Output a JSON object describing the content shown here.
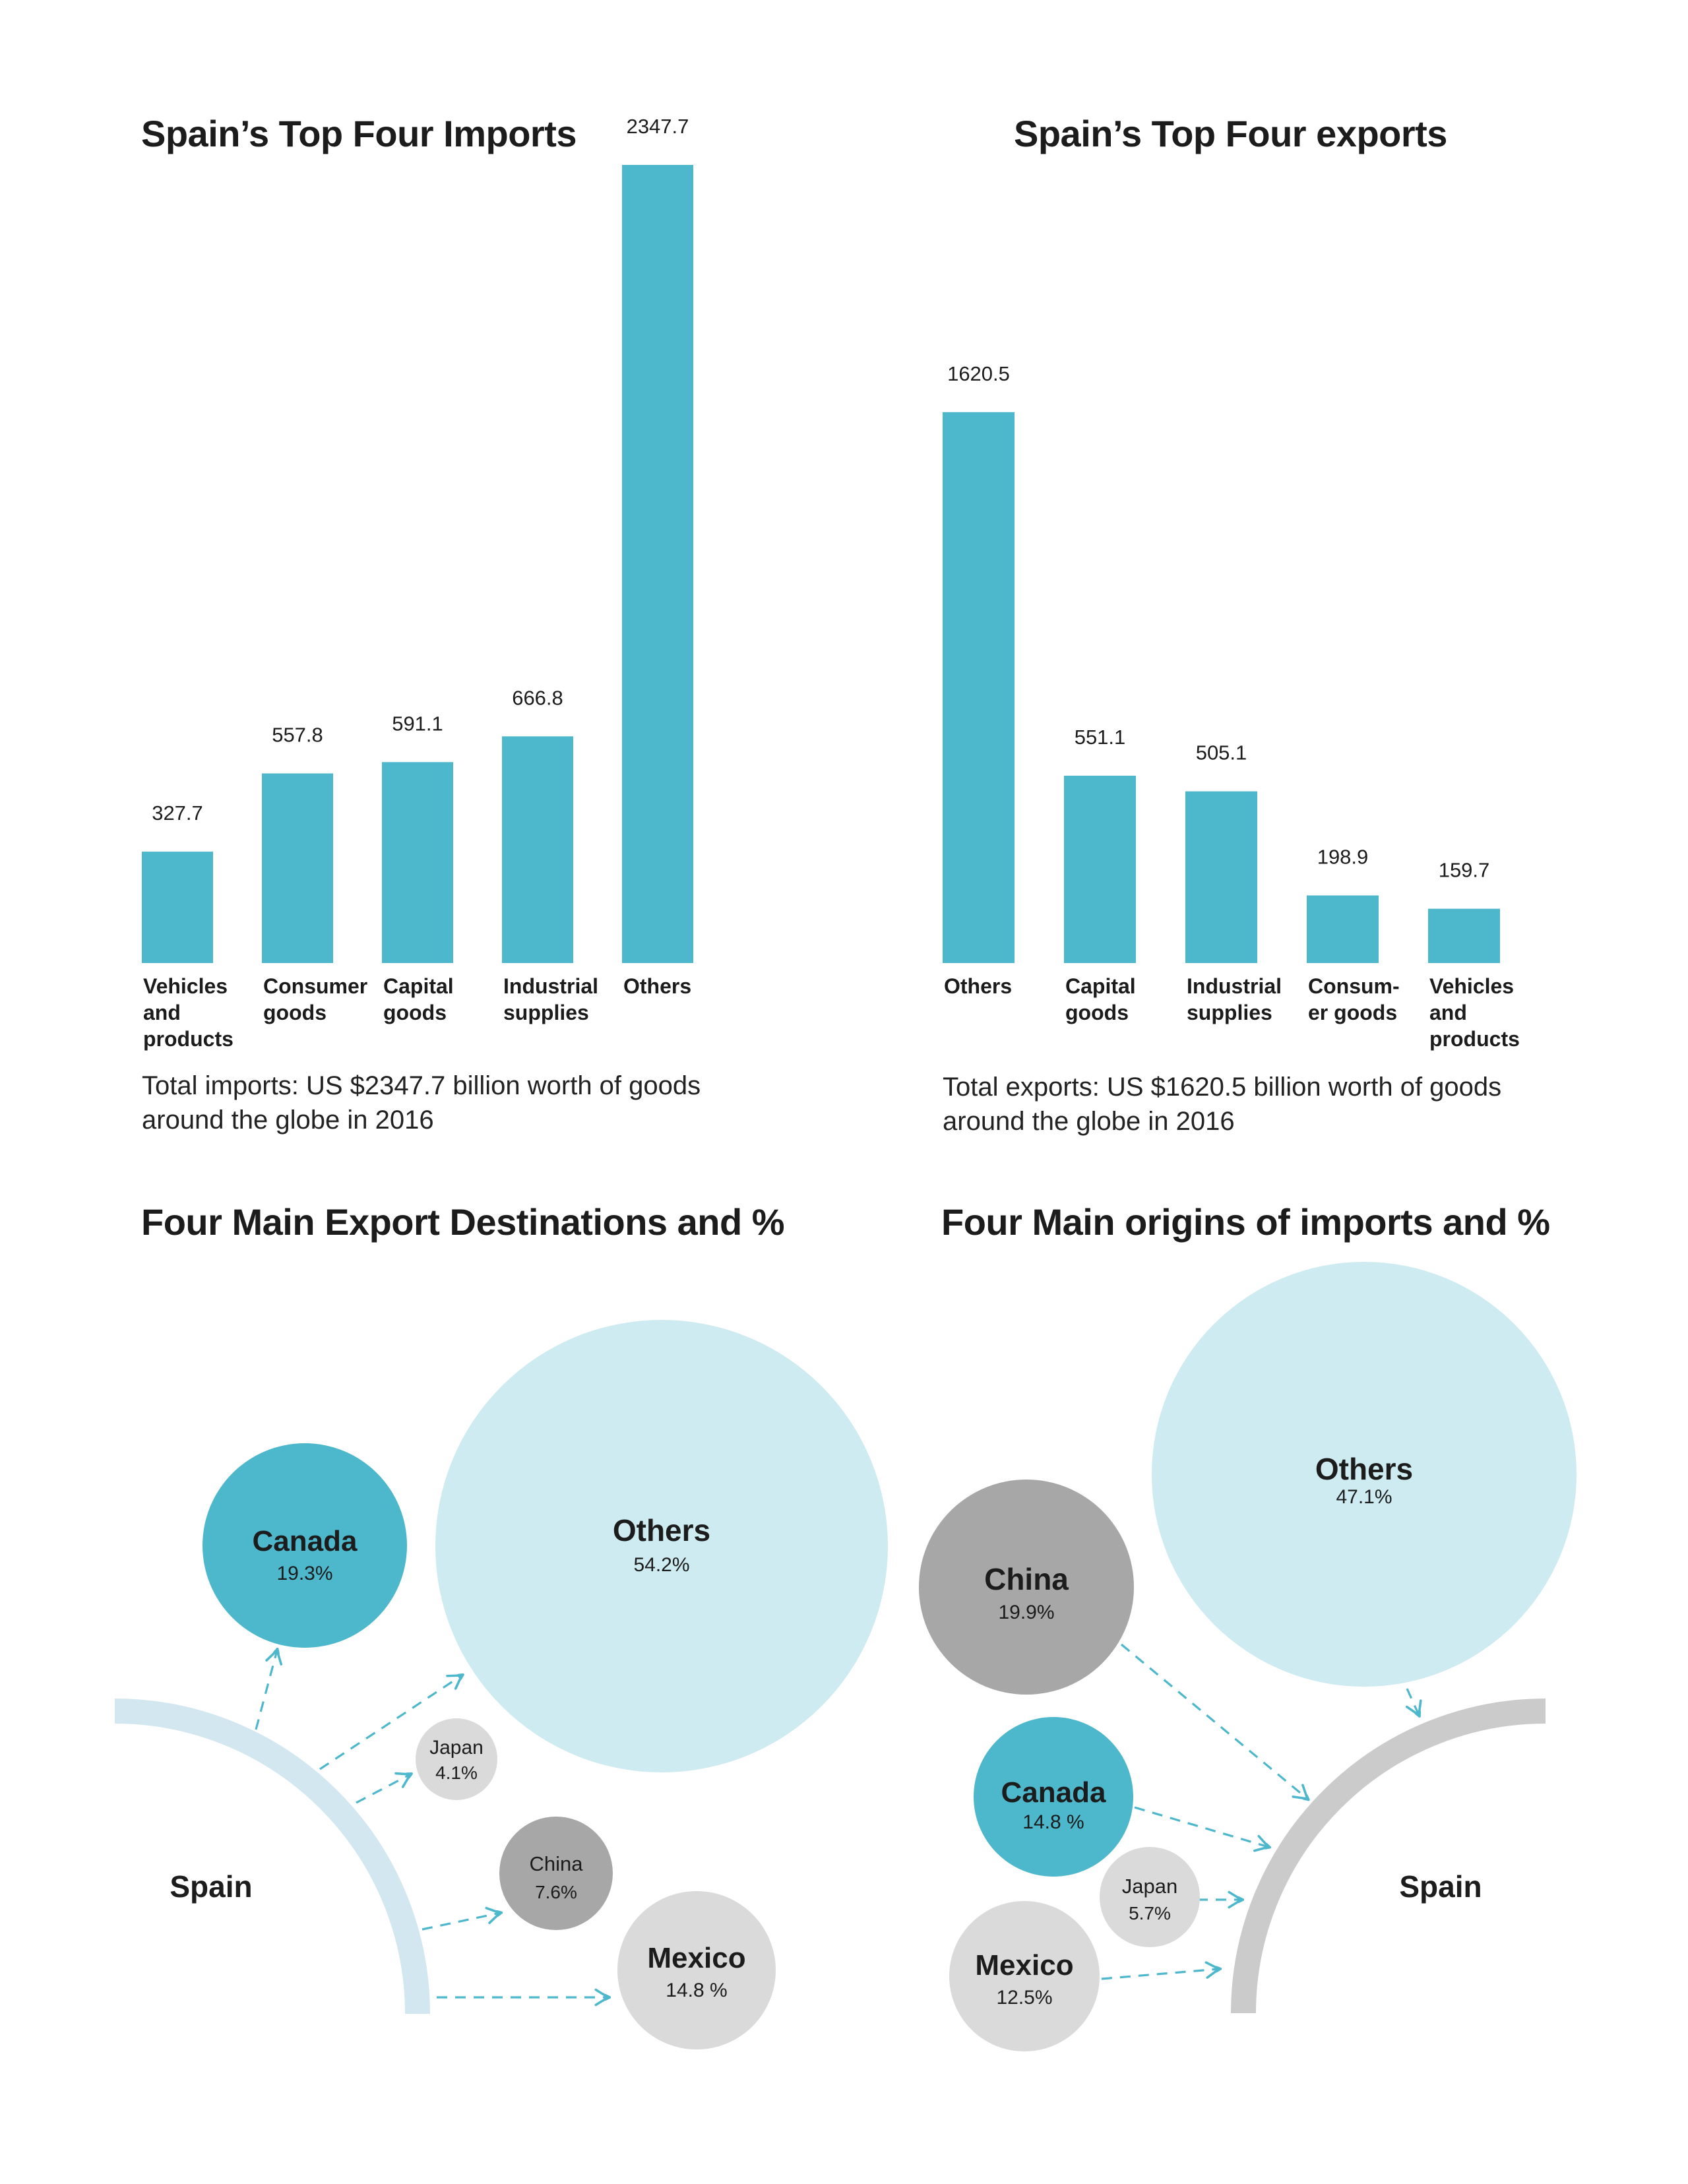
{
  "colors": {
    "teal": "#4db7cc",
    "light_teal": "#cdebf0",
    "dark_gray": "#a7a7a7",
    "light_gray": "#dadada",
    "arc_export": "#d3e7f0",
    "arc_import": "#cbcbcb",
    "arrow": "#4db7cc"
  },
  "imports_chart": {
    "title": "Spain’s Top Four Imports",
    "note_lines": [
      "Total imports: US $2347.7 billion worth of goods",
      "around the globe in 2016"
    ]
  },
  "exports_chart": {
    "title": "Spain’s Top Four exports",
    "note_lines": [
      "Total exports: US $1620.5 billion worth of goods",
      "around the globe in 2016"
    ]
  },
  "destinations": {
    "title": "Four Main Export Destinations and %",
    "origin_label": "Spain"
  },
  "origins": {
    "title": "Four Main origins of imports and %",
    "destination_label": "Spain"
  },
  "chart_data": [
    {
      "type": "bar",
      "title": "Spain’s Top Four Imports",
      "categories": [
        "Vehicles and products",
        "Consumer goods",
        "Capital goods",
        "Industrial supplies",
        "Others"
      ],
      "category_lines": [
        [
          "Vehicles",
          "and",
          "products"
        ],
        [
          "Consumer",
          "goods"
        ],
        [
          "Capital",
          "goods"
        ],
        [
          "Industrial",
          "supplies"
        ],
        [
          "Others"
        ]
      ],
      "values": [
        327.7,
        557.8,
        591.1,
        666.8,
        2347.7
      ],
      "value_labels": [
        "327.7",
        "557.8",
        "591.1",
        "666.8",
        "2347.7"
      ],
      "ylim": [
        0,
        2347.7
      ],
      "grid": false,
      "color": "#4db7cc"
    },
    {
      "type": "bar",
      "title": "Spain’s Top Four exports",
      "categories": [
        "Others",
        "Capital goods",
        "Industrial supplies",
        "Consumer goods",
        "Vehicles and products"
      ],
      "category_lines": [
        [
          "Others"
        ],
        [
          "Capital",
          "goods"
        ],
        [
          "Industrial",
          "supplies"
        ],
        [
          "Consum-",
          "er goods"
        ],
        [
          "Vehicles",
          "and",
          "products"
        ]
      ],
      "values": [
        1620.5,
        551.1,
        505.1,
        198.9,
        159.7
      ],
      "value_labels": [
        "1620.5",
        "551.1",
        "505.1",
        "198.9",
        "159.7"
      ],
      "ylim": [
        0,
        2347.7
      ],
      "grid": false,
      "color": "#4db7cc"
    },
    {
      "type": "bubble",
      "title": "Four Main Export Destinations and %",
      "items": [
        {
          "name": "Canada",
          "label": "19.3%",
          "value": 19.3,
          "color": "#4db7cc"
        },
        {
          "name": "Others",
          "label": "54.2%",
          "value": 54.2,
          "color": "#cdebf0"
        },
        {
          "name": "Japan",
          "label": "4.1%",
          "value": 4.1,
          "color": "#dadada"
        },
        {
          "name": "China",
          "label": "7.6%",
          "value": 7.6,
          "color": "#a7a7a7"
        },
        {
          "name": "Mexico",
          "label": "14.8 %",
          "value": 14.8,
          "color": "#dadada"
        }
      ]
    },
    {
      "type": "bubble",
      "title": "Four Main origins of imports and %",
      "items": [
        {
          "name": "Others",
          "label": "47.1%",
          "value": 47.1,
          "color": "#cdebf0"
        },
        {
          "name": "China",
          "label": "19.9%",
          "value": 19.9,
          "color": "#a7a7a7"
        },
        {
          "name": "Canada",
          "label": "14.8 %",
          "value": 14.8,
          "color": "#4db7cc"
        },
        {
          "name": "Japan",
          "label": "5.7%",
          "value": 5.7,
          "color": "#dadada"
        },
        {
          "name": "Mexico",
          "label": "12.5%",
          "value": 12.5,
          "color": "#dadada"
        }
      ]
    }
  ]
}
